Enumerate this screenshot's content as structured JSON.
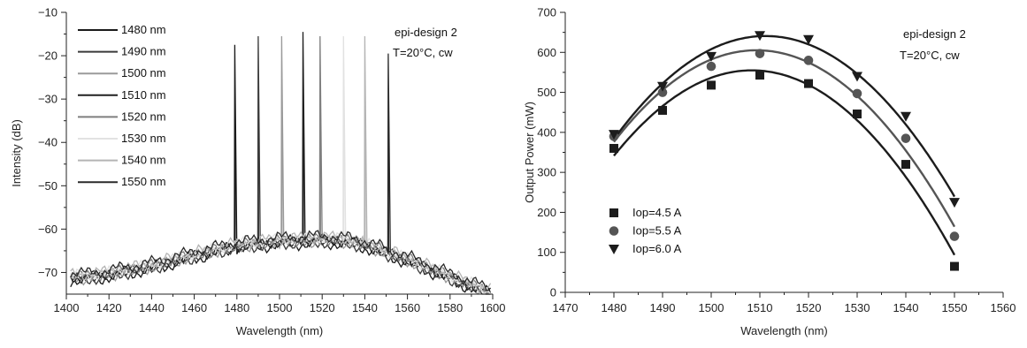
{
  "chart_data": [
    {
      "type": "line",
      "xlabel": "Wavelength (nm)",
      "ylabel": "Intensity (dB)",
      "xlim": [
        1400,
        1600
      ],
      "ylim": [
        -75,
        -10
      ],
      "xticks": [
        1400,
        1420,
        1440,
        1460,
        1480,
        1500,
        1520,
        1540,
        1560,
        1580,
        1600
      ],
      "yticks": [
        -10,
        -20,
        -30,
        -40,
        -50,
        -60,
        -70
      ],
      "annotation": [
        "epi-design 2",
        "T=20°C, cw"
      ],
      "legend_position": "top-left",
      "baseline_envelope": {
        "x": [
          1402,
          1410,
          1420,
          1440,
          1460,
          1480,
          1500,
          1520,
          1530,
          1540,
          1560,
          1580,
          1598
        ],
        "y": [
          -71,
          -71,
          -70.3,
          -68.5,
          -66,
          -63.8,
          -62.8,
          -62.4,
          -62.6,
          -63.5,
          -67,
          -71,
          -74.5
        ]
      },
      "series": [
        {
          "name": "1480 nm",
          "peak_x": 1479,
          "peak_y": -17.5,
          "color": "#1a1a1a"
        },
        {
          "name": "1490 nm",
          "peak_x": 1490,
          "peak_y": -15.5,
          "color": "#3a3a3a"
        },
        {
          "name": "1500 nm",
          "peak_x": 1501,
          "peak_y": -15.5,
          "color": "#9a9a9a"
        },
        {
          "name": "1510 nm",
          "peak_x": 1511,
          "peak_y": -14.5,
          "color": "#202020"
        },
        {
          "name": "1520 nm",
          "peak_x": 1519,
          "peak_y": -15.5,
          "color": "#7f7f7f"
        },
        {
          "name": "1530 nm",
          "peak_x": 1530,
          "peak_y": -15.5,
          "color": "#e2e2e2"
        },
        {
          "name": "1540 nm",
          "peak_x": 1540,
          "peak_y": -15.5,
          "color": "#b4b4b4"
        },
        {
          "name": "1550 nm",
          "peak_x": 1551,
          "peak_y": -19.5,
          "color": "#2a2a2a"
        }
      ]
    },
    {
      "type": "scatter",
      "xlabel": "Wavelength (nm)",
      "ylabel": "Output Power (mW)",
      "xlim": [
        1470,
        1560
      ],
      "ylim": [
        0,
        700
      ],
      "xticks": [
        1470,
        1480,
        1490,
        1500,
        1510,
        1520,
        1530,
        1540,
        1550,
        1560
      ],
      "yticks": [
        0,
        100,
        200,
        300,
        400,
        500,
        600,
        700
      ],
      "annotation": [
        "epi-design 2",
        "T=20°C, cw"
      ],
      "legend_position": "bottom-left",
      "x": [
        1480,
        1490,
        1500,
        1510,
        1520,
        1530,
        1540,
        1550
      ],
      "series": [
        {
          "name": "Iop=4.5 A",
          "marker": "square",
          "color": "#1c1c1c",
          "values": [
            360,
            455,
            518,
            543,
            522,
            446,
            320,
            65
          ]
        },
        {
          "name": "Iop=5.5 A",
          "marker": "circle",
          "color": "#555555",
          "values": [
            390,
            500,
            565,
            597,
            580,
            497,
            385,
            140
          ]
        },
        {
          "name": "Iop=6.0 A",
          "marker": "triangle-down",
          "color": "#1c1c1c",
          "values": [
            395,
            515,
            590,
            642,
            632,
            540,
            440,
            225
          ]
        }
      ]
    }
  ]
}
